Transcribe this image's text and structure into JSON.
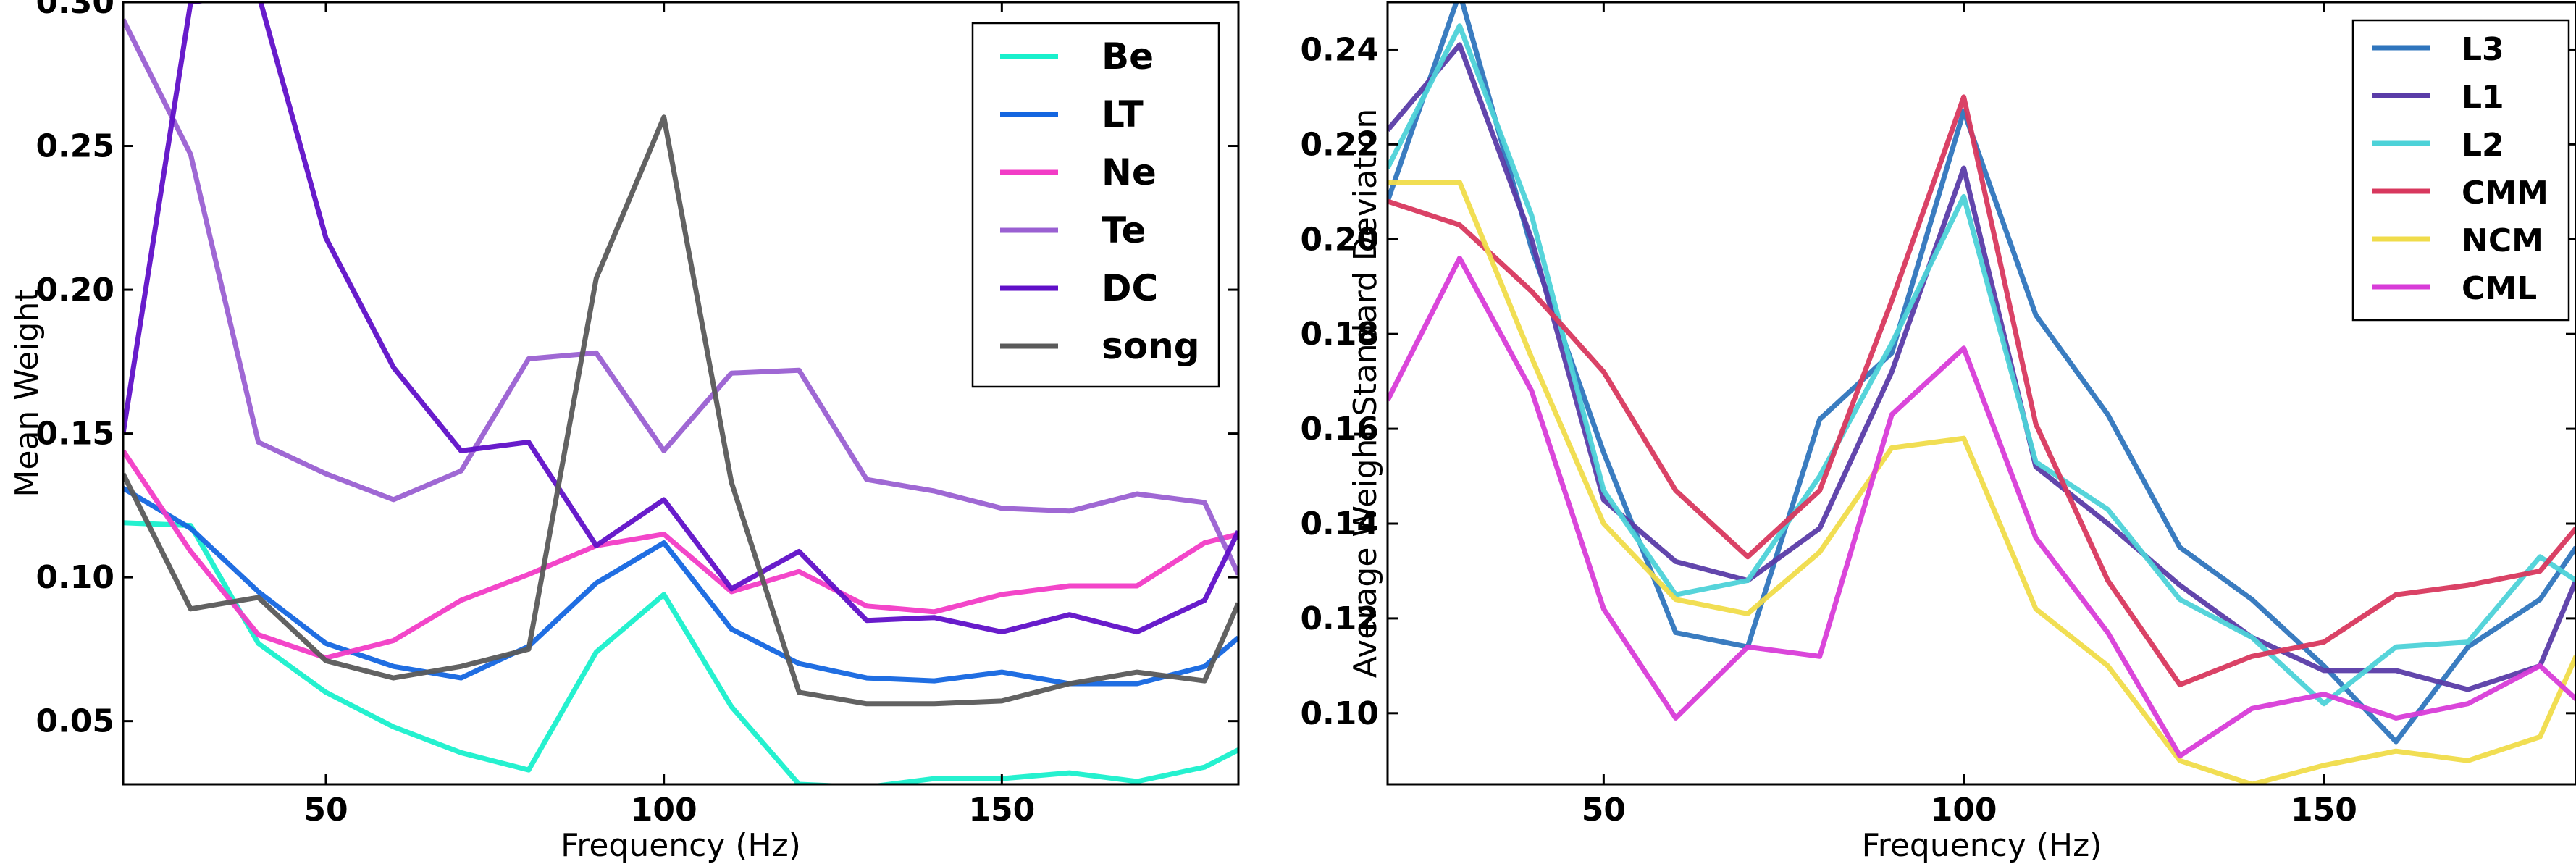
{
  "chart_data": [
    {
      "type": "line",
      "xlabel": "Frequency (Hz)",
      "ylabel": "Mean Weight",
      "xlim": [
        20,
        185
      ],
      "ylim": [
        0.028,
        0.3
      ],
      "xticks": [
        50,
        100,
        150
      ],
      "yticks": [
        0.05,
        0.1,
        0.15,
        0.2,
        0.25,
        0.3
      ],
      "ytick_labels": [
        "0.05",
        "0.10",
        "0.15",
        "0.20",
        "0.25",
        "0.30"
      ],
      "grid": false,
      "legend_position": "top-right",
      "x": [
        20,
        30,
        40,
        50,
        60,
        70,
        80,
        90,
        100,
        110,
        120,
        130,
        140,
        150,
        160,
        170,
        180,
        185
      ],
      "series": [
        {
          "name": "Be",
          "color": "#19f0cc",
          "values": [
            0.119,
            0.118,
            0.077,
            0.06,
            0.048,
            0.039,
            0.033,
            0.074,
            0.094,
            0.055,
            0.028,
            0.027,
            0.03,
            0.03,
            0.032,
            0.029,
            0.034,
            0.04
          ]
        },
        {
          "name": "LT",
          "color": "#1466e0",
          "values": [
            0.131,
            0.117,
            0.095,
            0.077,
            0.069,
            0.065,
            0.076,
            0.098,
            0.112,
            0.082,
            0.07,
            0.065,
            0.064,
            0.067,
            0.063,
            0.063,
            0.069,
            0.079
          ]
        },
        {
          "name": "Ne",
          "color": "#f23cc6",
          "values": [
            0.144,
            0.109,
            0.08,
            0.072,
            0.078,
            0.092,
            0.101,
            0.111,
            0.115,
            0.095,
            0.102,
            0.09,
            0.088,
            0.094,
            0.097,
            0.097,
            0.112,
            0.115
          ]
        },
        {
          "name": "Te",
          "color": "#9a60d2",
          "values": [
            0.294,
            0.247,
            0.147,
            0.136,
            0.127,
            0.137,
            0.176,
            0.178,
            0.144,
            0.171,
            0.172,
            0.134,
            0.13,
            0.124,
            0.123,
            0.129,
            0.126,
            0.101
          ]
        },
        {
          "name": "DC",
          "color": "#6010c8",
          "values": [
            0.15,
            0.3,
            0.303,
            0.218,
            0.173,
            0.144,
            0.147,
            0.111,
            0.127,
            0.096,
            0.109,
            0.085,
            0.086,
            0.081,
            0.087,
            0.081,
            0.092,
            0.116
          ]
        },
        {
          "name": "song",
          "color": "#5a5a5a",
          "values": [
            0.136,
            0.089,
            0.093,
            0.071,
            0.065,
            0.069,
            0.075,
            0.204,
            0.26,
            0.133,
            0.06,
            0.056,
            0.056,
            0.057,
            0.063,
            0.067,
            0.064,
            0.091
          ]
        }
      ]
    },
    {
      "type": "line",
      "xlabel": "Frequency (Hz)",
      "ylabel": "Average Weight Standard Deviation",
      "xlim": [
        20,
        185
      ],
      "ylim": [
        0.085,
        0.25
      ],
      "xticks": [
        50,
        100,
        150
      ],
      "yticks": [
        0.1,
        0.12,
        0.14,
        0.16,
        0.18,
        0.2,
        0.22,
        0.24
      ],
      "ytick_labels": [
        "0.10",
        "0.12",
        "0.14",
        "0.16",
        "0.18",
        "0.20",
        "0.22",
        "0.24"
      ],
      "grid": false,
      "legend_position": "top-right",
      "x": [
        20,
        30,
        40,
        50,
        60,
        70,
        80,
        90,
        100,
        110,
        120,
        130,
        140,
        150,
        160,
        170,
        180,
        185
      ],
      "series": [
        {
          "name": "L3",
          "color": "#2f75bd",
          "values": [
            0.208,
            0.252,
            0.198,
            0.155,
            0.117,
            0.114,
            0.162,
            0.176,
            0.227,
            0.184,
            0.163,
            0.135,
            0.124,
            0.11,
            0.094,
            0.114,
            0.124,
            0.135
          ]
        },
        {
          "name": "L1",
          "color": "#5a3ca8",
          "values": [
            0.223,
            0.241,
            0.2,
            0.145,
            0.132,
            0.128,
            0.139,
            0.172,
            0.215,
            0.152,
            0.14,
            0.127,
            0.116,
            0.109,
            0.109,
            0.105,
            0.11,
            0.128
          ]
        },
        {
          "name": "L2",
          "color": "#4dd2d8",
          "values": [
            0.215,
            0.245,
            0.205,
            0.147,
            0.125,
            0.128,
            0.15,
            0.178,
            0.209,
            0.153,
            0.143,
            0.124,
            0.116,
            0.102,
            0.114,
            0.115,
            0.133,
            0.128
          ]
        },
        {
          "name": "CMM",
          "color": "#d8385e",
          "values": [
            0.208,
            0.203,
            0.189,
            0.172,
            0.147,
            0.133,
            0.147,
            0.187,
            0.23,
            0.161,
            0.128,
            0.106,
            0.112,
            0.115,
            0.125,
            0.127,
            0.13,
            0.139
          ]
        },
        {
          "name": "NCM",
          "color": "#f0dc4a",
          "values": [
            0.212,
            0.212,
            0.175,
            0.14,
            0.124,
            0.121,
            0.134,
            0.156,
            0.158,
            0.122,
            0.11,
            0.09,
            0.085,
            0.089,
            0.092,
            0.09,
            0.095,
            0.112
          ]
        },
        {
          "name": "CML",
          "color": "#d83cd8",
          "values": [
            0.166,
            0.196,
            0.168,
            0.122,
            0.099,
            0.114,
            0.112,
            0.163,
            0.177,
            0.137,
            0.117,
            0.091,
            0.101,
            0.104,
            0.099,
            0.102,
            0.11,
            0.103
          ]
        }
      ]
    }
  ]
}
